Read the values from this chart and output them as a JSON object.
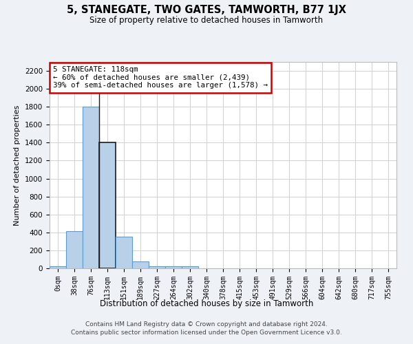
{
  "title": "5, STANEGATE, TWO GATES, TAMWORTH, B77 1JX",
  "subtitle": "Size of property relative to detached houses in Tamworth",
  "xlabel": "Distribution of detached houses by size in Tamworth",
  "ylabel": "Number of detached properties",
  "bin_labels": [
    "0sqm",
    "38sqm",
    "76sqm",
    "113sqm",
    "151sqm",
    "189sqm",
    "227sqm",
    "264sqm",
    "302sqm",
    "340sqm",
    "378sqm",
    "415sqm",
    "453sqm",
    "491sqm",
    "529sqm",
    "566sqm",
    "604sqm",
    "642sqm",
    "680sqm",
    "717sqm",
    "755sqm"
  ],
  "bar_values": [
    20,
    415,
    1800,
    1400,
    355,
    80,
    25,
    25,
    20,
    0,
    0,
    0,
    0,
    0,
    0,
    0,
    0,
    0,
    0,
    0,
    0
  ],
  "bar_color": "#b8d0e8",
  "bar_edge_color": "#5b9bd5",
  "highlight_bar_index": 3,
  "annotation_text": "5 STANEGATE: 118sqm\n← 60% of detached houses are smaller (2,439)\n39% of semi-detached houses are larger (1,578) →",
  "annotation_box_color": "#ffffff",
  "annotation_box_edge_color": "#cc0000",
  "ylim": [
    0,
    2300
  ],
  "yticks": [
    0,
    200,
    400,
    600,
    800,
    1000,
    1200,
    1400,
    1600,
    1800,
    2000,
    2200
  ],
  "footer_line1": "Contains HM Land Registry data © Crown copyright and database right 2024.",
  "footer_line2": "Contains public sector information licensed under the Open Government Licence v3.0.",
  "bg_color": "#eef2f7",
  "plot_bg_color": "#ffffff",
  "grid_color": "#d0d0d0"
}
